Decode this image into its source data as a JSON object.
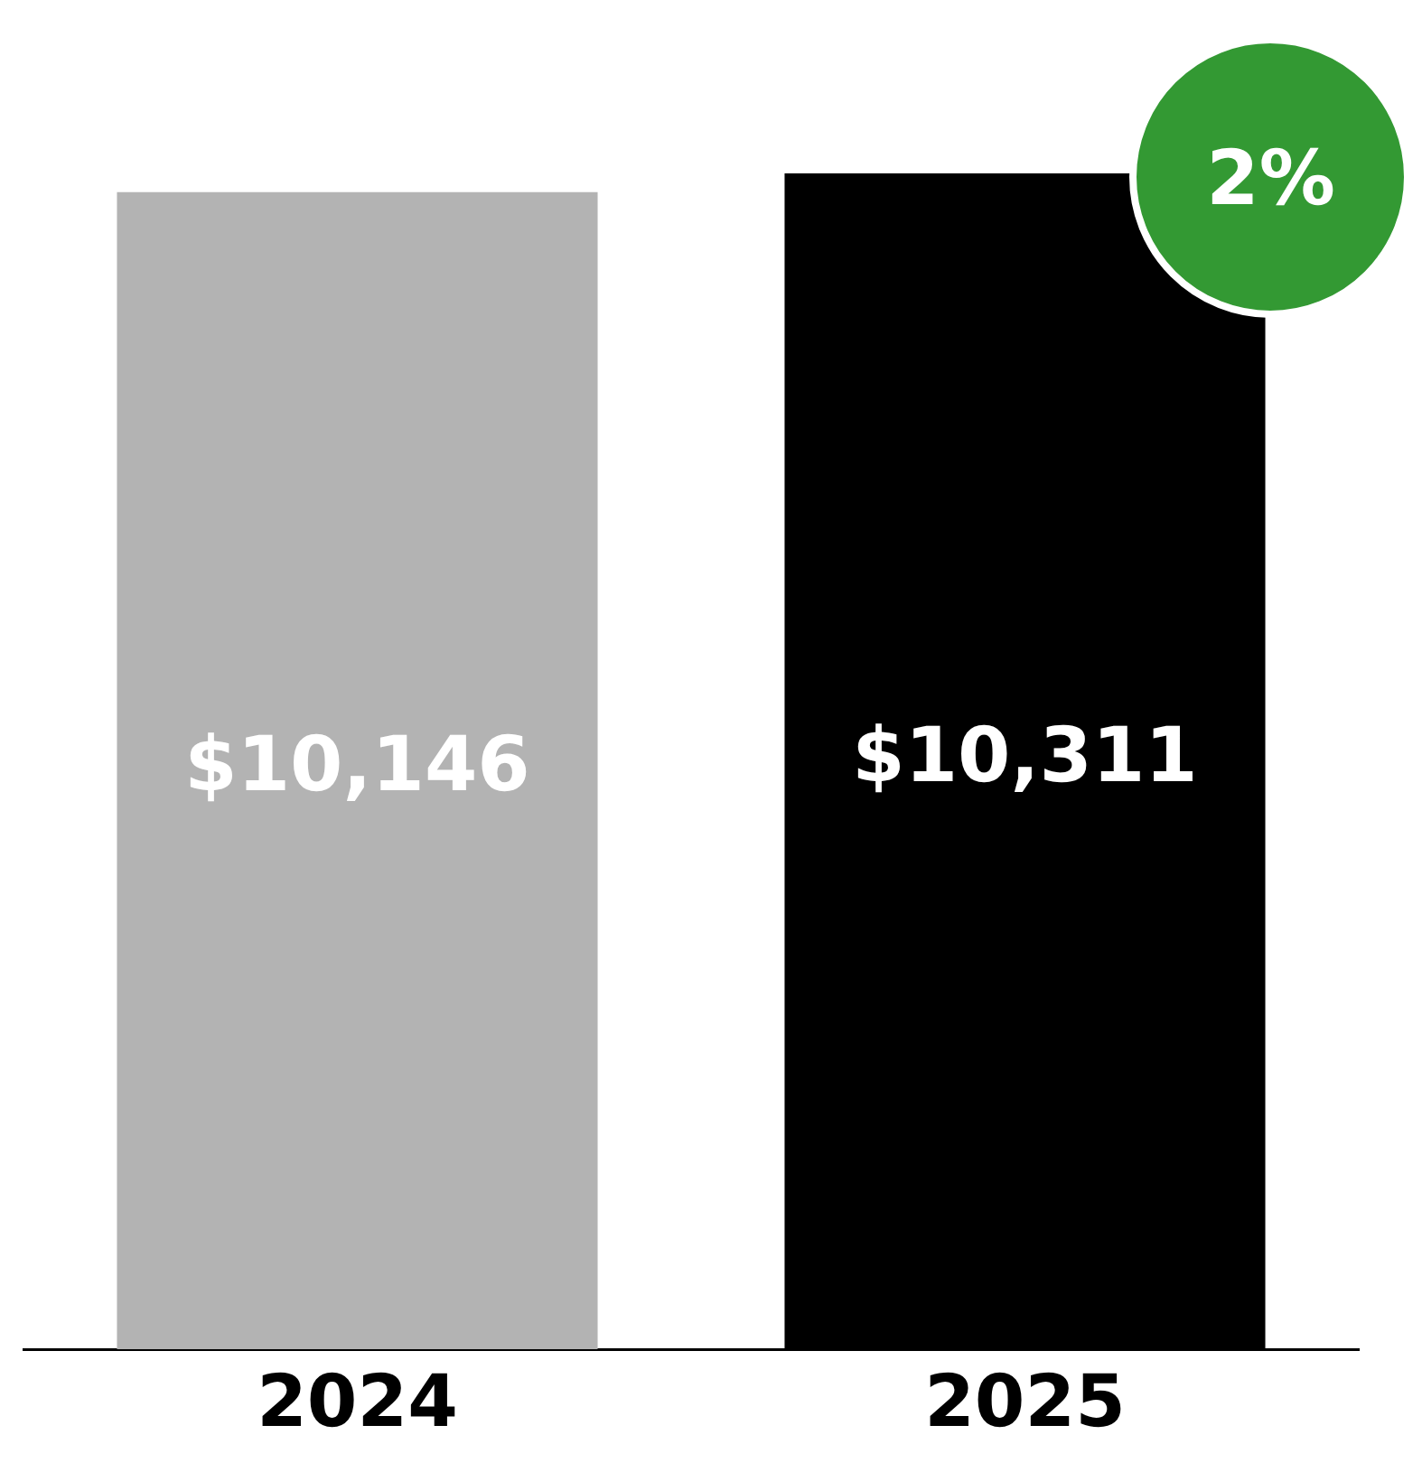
{
  "chart_data": {
    "type": "bar",
    "categories": [
      "2024",
      "2025"
    ],
    "values": [
      10146,
      10311
    ],
    "colors": [
      "#b3b3b3",
      "#000000"
    ],
    "data_labels": true,
    "value_labels": [
      "$10,146",
      "$10,311"
    ],
    "annotations": [
      "2%"
    ],
    "legend": false,
    "grid": false
  }
}
